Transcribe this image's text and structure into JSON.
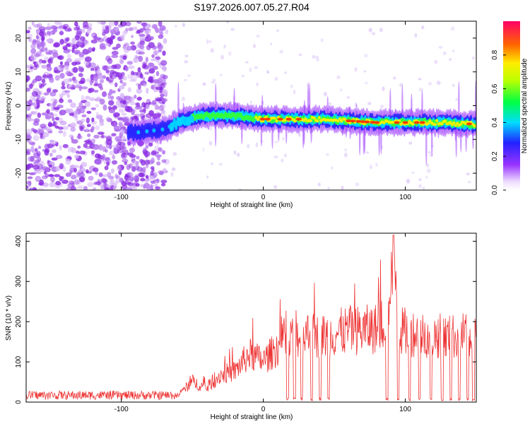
{
  "title": "S197.2026.007.05.27.R04",
  "chart_data": [
    {
      "type": "heatmap",
      "name": "spectrogram",
      "xlabel": "Height of straight line (km)",
      "ylabel": "Frequency (Hz)",
      "xlim": [
        -167,
        150
      ],
      "ylim": [
        -25,
        25
      ],
      "xticks": [
        -100,
        0,
        100
      ],
      "yticks": [
        -20,
        -10,
        0,
        10,
        20
      ],
      "colorbar": {
        "label": "Normalized spectral amplitude",
        "range": [
          0,
          1
        ],
        "ticks": [
          0.0,
          0.2,
          0.4,
          0.6,
          0.8
        ]
      },
      "ridge": [
        {
          "x": -90,
          "y": -8
        },
        {
          "x": -70,
          "y": -7
        },
        {
          "x": -60,
          "y": -5
        },
        {
          "x": -45,
          "y": -3
        },
        {
          "x": -20,
          "y": -3
        },
        {
          "x": 0,
          "y": -4
        },
        {
          "x": 20,
          "y": -4
        },
        {
          "x": 40,
          "y": -4
        },
        {
          "x": 60,
          "y": -4.5
        },
        {
          "x": 80,
          "y": -5
        },
        {
          "x": 100,
          "y": -5
        },
        {
          "x": 120,
          "y": -5
        },
        {
          "x": 150,
          "y": -5.5
        }
      ]
    },
    {
      "type": "line",
      "name": "snr",
      "xlabel": "Height of straight line (km)",
      "ylabel": "SNR (10 * v/v)",
      "xlim": [
        -167,
        150
      ],
      "ylim": [
        0,
        420
      ],
      "xticks": [
        -100,
        0,
        100
      ],
      "yticks": [
        0,
        100,
        200,
        300,
        400
      ],
      "color": "#ee3333",
      "envelope": [
        {
          "x": -167,
          "y": 15
        },
        {
          "x": -60,
          "y": 20
        },
        {
          "x": -50,
          "y": 60
        },
        {
          "x": -40,
          "y": 40
        },
        {
          "x": -30,
          "y": 80
        },
        {
          "x": -20,
          "y": 90
        },
        {
          "x": -10,
          "y": 140
        },
        {
          "x": 0,
          "y": 120
        },
        {
          "x": 10,
          "y": 160
        },
        {
          "x": 20,
          "y": 190
        },
        {
          "x": 30,
          "y": 200
        },
        {
          "x": 40,
          "y": 190
        },
        {
          "x": 50,
          "y": 200
        },
        {
          "x": 60,
          "y": 210
        },
        {
          "x": 70,
          "y": 210
        },
        {
          "x": 80,
          "y": 215
        },
        {
          "x": 88,
          "y": 250
        },
        {
          "x": 92,
          "y": 320
        },
        {
          "x": 95,
          "y": 210
        },
        {
          "x": 100,
          "y": 205
        },
        {
          "x": 110,
          "y": 200
        },
        {
          "x": 120,
          "y": 195
        },
        {
          "x": 130,
          "y": 190
        },
        {
          "x": 140,
          "y": 195
        },
        {
          "x": 150,
          "y": 190
        }
      ],
      "dips": [
        17,
        22,
        27,
        34,
        40,
        46,
        87,
        95,
        103,
        110,
        118,
        126,
        132,
        138,
        144,
        148
      ]
    }
  ]
}
